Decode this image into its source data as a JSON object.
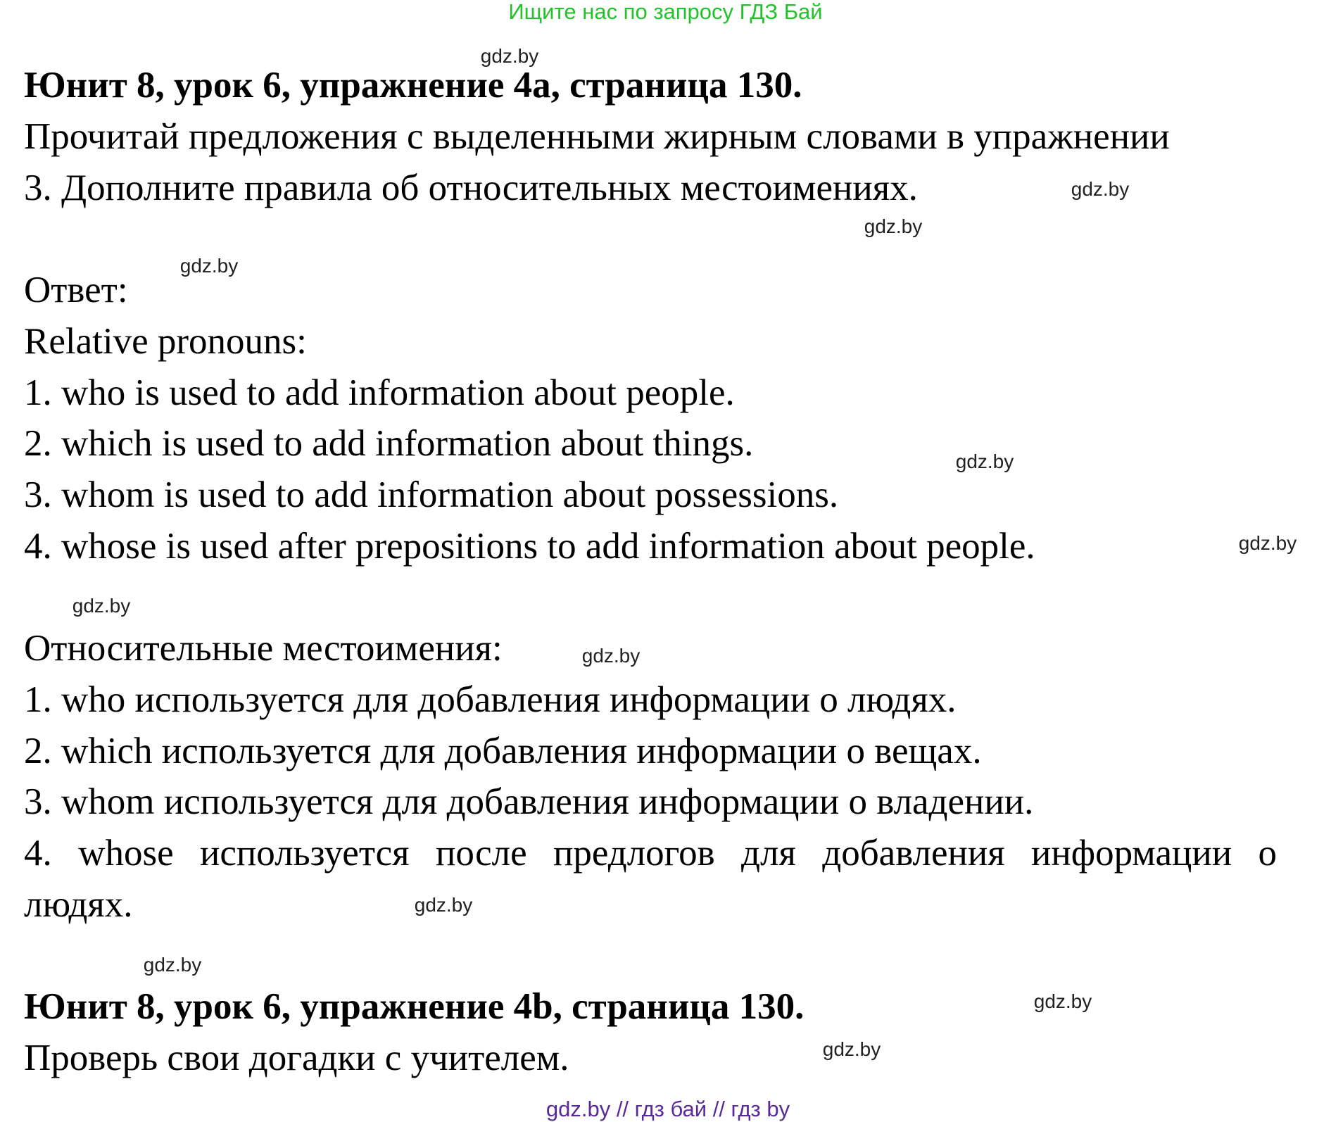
{
  "banner": "Ищите нас по запросу ГДЗ Бай",
  "watermark": "gdz.by",
  "section1": {
    "title": "Юнит 8, урок 6, упражнение 4a, страница 130.",
    "task": [
      "Прочитай предложения с выделенными жирным словами в упражнении",
      "3. Дополните правила об относительных местоимениях."
    ],
    "answer_label": "Ответ:",
    "en_heading": "Relative pronouns:",
    "en_items": [
      "1. who is used to add information about people.",
      "2. which is used to add information about things.",
      "3. whom is used to add information about possessions.",
      "4. whose is used after prepositions to add information about people."
    ],
    "ru_heading": "Относительные местоимения:",
    "ru_items": [
      "1. who используется для добавления информации о людях.",
      "2. which используется для добавления информации о вещах.",
      "3. whom используется для добавления информации о владении.",
      "4. whose используется после предлогов для добавления информации о",
      "людях."
    ]
  },
  "section2": {
    "title": "Юнит 8, урок 6, упражнение 4b, страница 130.",
    "task": "Проверь свои догадки с учителем."
  },
  "footer": "gdz.by  //  гдз бай  //  гдз by",
  "colors": {
    "banner": "#22c32a",
    "footer": "#5a2a9a"
  }
}
